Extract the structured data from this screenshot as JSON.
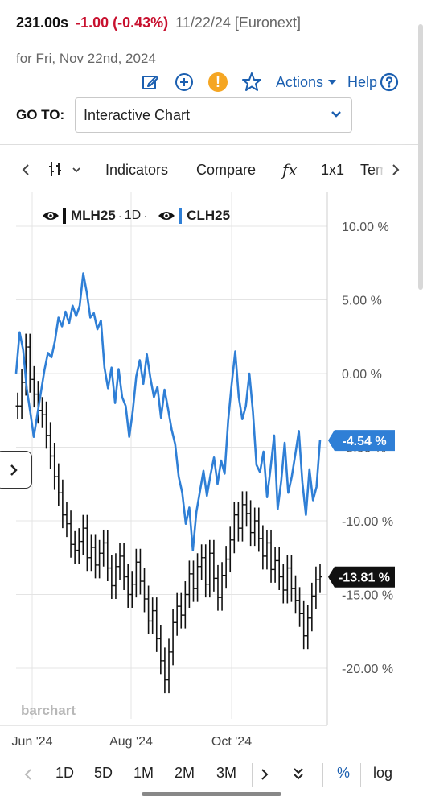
{
  "quote": {
    "price": "231.00s",
    "change": "-1.00 (-0.43%)",
    "meta": "11/22/24 [Euronext]",
    "date": "for Fri, Nov 22nd, 2024"
  },
  "toolbar": {
    "actions_label": "Actions",
    "help_label": "Help",
    "alert_symbol": "!",
    "icons": [
      "edit-icon",
      "plus-circle-icon",
      "alert-icon",
      "star-icon",
      "help-icon"
    ]
  },
  "goto": {
    "label": "GO TO:",
    "value": "Interactive Chart"
  },
  "chart_toolbar": {
    "indicators": "Indicators",
    "compare": "Compare",
    "fx": "fx",
    "layout": "1x1",
    "templates": "Templ"
  },
  "legend": {
    "series1": "MLH25",
    "interval": "1D",
    "series2": "CLH25"
  },
  "chart_data": {
    "type": "line",
    "y_axis": {
      "unit": "%",
      "ticks": [
        "10.00 %",
        "5.00 %",
        "0.00 %",
        "-5.00 %",
        "-10.00 %",
        "-15.00 %",
        "-20.00 %"
      ],
      "tick_values": [
        10,
        5,
        0,
        -5,
        -10,
        -15,
        -20
      ],
      "range": [
        -22,
        13
      ]
    },
    "x_axis": {
      "ticks": [
        "Jun '24",
        "Aug '24",
        "Oct '24"
      ]
    },
    "watermark": "barchart",
    "series": [
      {
        "name": "CLH25",
        "color": "#2f7fd6",
        "last_label": "-4.54 %",
        "values": [
          0.0,
          2.8,
          1.6,
          -1.0,
          -2.6,
          -4.3,
          -2.8,
          -1.3,
          0.2,
          1.4,
          1.1,
          2.2,
          3.8,
          3.2,
          4.2,
          3.4,
          4.6,
          3.9,
          4.6,
          6.8,
          5.5,
          3.8,
          4.1,
          3.0,
          3.6,
          0.4,
          -1.0,
          0.4,
          -2.0,
          0.3,
          -1.6,
          -2.2,
          -4.3,
          -2.6,
          -0.2,
          0.9,
          -0.7,
          1.3,
          -0.3,
          -1.6,
          -0.9,
          -3.0,
          -1.1,
          -2.4,
          -3.8,
          -4.8,
          -7.0,
          -8.1,
          -10.2,
          -9.1,
          -12.0,
          -9.4,
          -8.0,
          -6.6,
          -8.3,
          -6.9,
          -5.7,
          -7.5,
          -5.9,
          -6.8,
          -3.2,
          -0.7,
          1.5,
          -1.6,
          -3.1,
          -2.2,
          0.0,
          -2.6,
          -6.2,
          -6.7,
          -5.3,
          -8.4,
          -6.4,
          -4.2,
          -9.2,
          -7.3,
          -4.7,
          -8.1,
          -7.0,
          -5.5,
          -3.9,
          -7.4,
          -9.6,
          -6.5,
          -8.6,
          -7.7,
          -4.5
        ]
      },
      {
        "name": "MLH25",
        "color": "#111111",
        "last_label": "-13.81 %",
        "values": [
          -2.2,
          -0.6,
          1.8,
          -0.4,
          -1.4,
          -2.5,
          -2.8,
          -4.2,
          -5.6,
          -7.0,
          -8.1,
          -9.6,
          -10.2,
          -11.6,
          -12.0,
          -11.4,
          -10.5,
          -12.5,
          -11.8,
          -13.0,
          -12.2,
          -11.5,
          -13.2,
          -14.4,
          -13.1,
          -12.4,
          -13.8,
          -15.0,
          -14.3,
          -12.8,
          -14.1,
          -15.3,
          -16.8,
          -16.1,
          -18.0,
          -19.5,
          -20.8,
          -18.9,
          -16.9,
          -15.8,
          -16.4,
          -15.0,
          -13.6,
          -14.6,
          -13.1,
          -12.5,
          -14.3,
          -12.2,
          -13.9,
          -15.2,
          -13.7,
          -12.6,
          -11.3,
          -9.6,
          -10.5,
          -8.9,
          -9.5,
          -10.8,
          -10.0,
          -11.2,
          -12.4,
          -11.5,
          -13.3,
          -12.7,
          -13.8,
          -14.7,
          -13.2,
          -14.6,
          -15.4,
          -16.3,
          -17.8,
          -16.6,
          -15.1,
          -14.0,
          -13.8
        ]
      }
    ]
  },
  "bottom_bar": {
    "periods": [
      "1D",
      "5D",
      "1M",
      "2M",
      "3M"
    ],
    "percent": "%",
    "log": "log"
  }
}
